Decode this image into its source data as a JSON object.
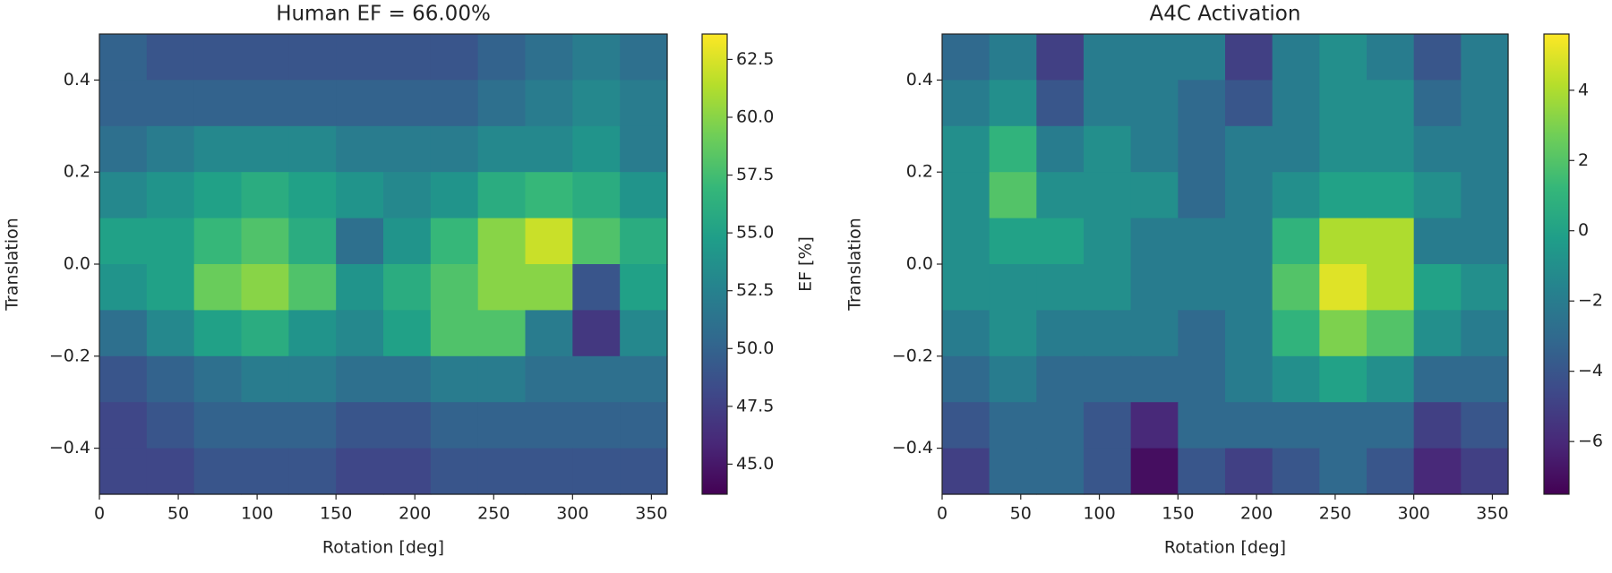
{
  "chart_data": [
    {
      "type": "heatmap",
      "title": "Human EF = 66.00%",
      "x_label": "Rotation [deg]",
      "y_label": "Translation",
      "colormap": "viridis",
      "x": [
        15,
        45,
        75,
        105,
        135,
        165,
        195,
        225,
        255,
        285,
        315,
        345
      ],
      "y": [
        0.45,
        0.35,
        0.25,
        0.15,
        0.05,
        -0.05,
        -0.15,
        -0.25,
        -0.35,
        -0.45
      ],
      "values": [
        [
          50,
          49,
          49,
          49,
          49,
          49,
          49,
          49,
          50,
          51,
          52,
          51
        ],
        [
          50,
          50,
          50,
          50,
          50,
          50,
          50,
          50,
          51,
          52,
          53,
          52
        ],
        [
          51,
          52,
          53,
          53,
          53,
          52,
          52,
          52,
          53,
          53,
          54,
          52
        ],
        [
          53,
          54,
          55,
          56,
          55,
          54,
          53,
          54,
          56,
          57,
          56,
          54
        ],
        [
          55,
          55,
          57,
          58,
          56,
          51,
          54,
          57,
          60,
          62,
          58,
          56
        ],
        [
          54,
          55,
          59,
          60,
          58,
          54,
          56,
          58,
          60,
          60,
          49,
          55
        ],
        [
          51,
          53,
          55,
          56,
          54,
          53,
          55,
          58,
          58,
          52,
          47,
          53
        ],
        [
          49,
          50,
          51,
          52,
          52,
          51,
          51,
          52,
          52,
          51,
          51,
          51
        ],
        [
          48,
          49,
          50,
          50,
          50,
          49,
          49,
          50,
          50,
          50,
          50,
          50
        ],
        [
          48,
          48,
          49,
          49,
          49,
          48,
          48,
          49,
          49,
          49,
          49,
          49
        ]
      ],
      "xlim": [
        0,
        360
      ],
      "ylim": [
        -0.5,
        0.5
      ],
      "xticks": [
        0,
        50,
        100,
        150,
        200,
        250,
        300,
        350
      ],
      "yticks": [
        {
          "value": -0.4,
          "label": "−0.4"
        },
        {
          "value": -0.2,
          "label": "−0.2"
        },
        {
          "value": 0,
          "label": "0.0"
        },
        0.2,
        0.4
      ],
      "colorbar": {
        "label": "EF [%]",
        "lim": [
          43.7,
          63.6
        ],
        "ticks": [
          {
            "value": 45,
            "label": "45.0"
          },
          47.5,
          {
            "value": 50,
            "label": "50.0"
          },
          52.5,
          {
            "value": 55,
            "label": "55.0"
          },
          57.5,
          {
            "value": 60,
            "label": "60.0"
          },
          62.5
        ]
      }
    },
    {
      "type": "heatmap",
      "title": "A4C Activation",
      "x_label": "Rotation [deg]",
      "y_label": "Translation",
      "colormap": "viridis",
      "x": [
        15,
        45,
        75,
        105,
        135,
        165,
        195,
        225,
        255,
        285,
        315,
        345
      ],
      "y": [
        0.45,
        0.35,
        0.25,
        0.15,
        0.05,
        -0.05,
        -0.15,
        -0.25,
        -0.35,
        -0.45
      ],
      "values": [
        [
          -3,
          -2,
          -5,
          -2,
          -2,
          -2,
          -5,
          -2,
          -1,
          -2,
          -4,
          -2
        ],
        [
          -2,
          -1,
          -4,
          -2,
          -2,
          -3,
          -4,
          -2,
          -1,
          -1,
          -3,
          -2
        ],
        [
          -1,
          1,
          -2,
          -1,
          -2,
          -3,
          -2,
          -2,
          -1,
          -1,
          -2,
          -2
        ],
        [
          -1,
          2,
          -1,
          -1,
          -1,
          -3,
          -2,
          -1,
          0,
          0,
          -1,
          -2
        ],
        [
          -1,
          0,
          0,
          -1,
          -2,
          -2,
          -2,
          1,
          4,
          4,
          -2,
          -2
        ],
        [
          -1,
          -1,
          -1,
          -1,
          -2,
          -2,
          -2,
          2,
          5,
          4,
          0,
          -1
        ],
        [
          -2,
          -1,
          -2,
          -2,
          -2,
          -3,
          -2,
          1,
          3,
          2,
          -1,
          -2
        ],
        [
          -3,
          -2,
          -3,
          -3,
          -3,
          -3,
          -2,
          -1,
          0,
          -1,
          -3,
          -3
        ],
        [
          -4,
          -3,
          -3,
          -4,
          -6,
          -3,
          -3,
          -3,
          -3,
          -3,
          -5,
          -4
        ],
        [
          -5,
          -3,
          -3,
          -4,
          -7,
          -4,
          -5,
          -4,
          -3,
          -4,
          -6,
          -5
        ]
      ],
      "xlim": [
        0,
        360
      ],
      "ylim": [
        -0.5,
        0.5
      ],
      "xticks": [
        0,
        50,
        100,
        150,
        200,
        250,
        300,
        350
      ],
      "yticks": [
        {
          "value": -0.4,
          "label": "−0.4"
        },
        {
          "value": -0.2,
          "label": "−0.2"
        },
        {
          "value": 0,
          "label": "0.0"
        },
        0.2,
        0.4
      ],
      "colorbar": {
        "lim": [
          -7.5,
          5.6
        ],
        "ticks": [
          {
            "value": -6,
            "label": "−6"
          },
          {
            "value": -4,
            "label": "−4"
          },
          {
            "value": -2,
            "label": "−2"
          },
          0,
          2,
          4
        ]
      }
    }
  ]
}
